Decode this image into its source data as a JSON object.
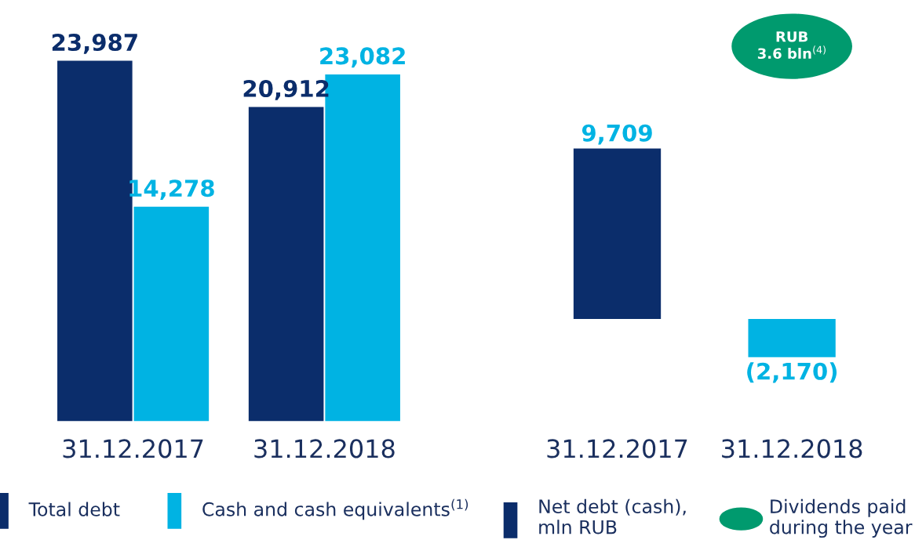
{
  "chart_data": [
    {
      "type": "bar",
      "categories": [
        "31.12.2017",
        "31.12.2018"
      ],
      "legend": "bottom",
      "series": [
        {
          "name": "Total debt",
          "color": "#0b2d6b",
          "values": [
            23987,
            20912
          ],
          "value_labels": [
            "23,987",
            "20,912"
          ]
        },
        {
          "name": "Cash and cash equivalents$^{(1)}$",
          "color": "#00b3e3",
          "values": [
            14278,
            23082
          ],
          "value_labels": [
            "14,278",
            "23,082"
          ]
        }
      ]
    },
    {
      "type": "bar",
      "categories": [
        "31.12.2017",
        "31.12.2018"
      ],
      "legend": "bottom",
      "annotations": [
        "RUB\n3.6 bln$^{(4)}$"
      ],
      "series": [
        {
          "name": "Net debt (cash),\nmln RUB",
          "color": "#0b2d6b",
          "colors": [
            "#0b2d6b",
            "#00b3e3"
          ],
          "values": [
            9709,
            -2170
          ],
          "value_labels": [
            "9,709",
            "(2,170)"
          ]
        },
        {
          "name": "Dividends paid\nduring the year",
          "type": "other",
          "color": "#009a6e",
          "values": [
            null,
            null
          ]
        }
      ]
    }
  ]
}
